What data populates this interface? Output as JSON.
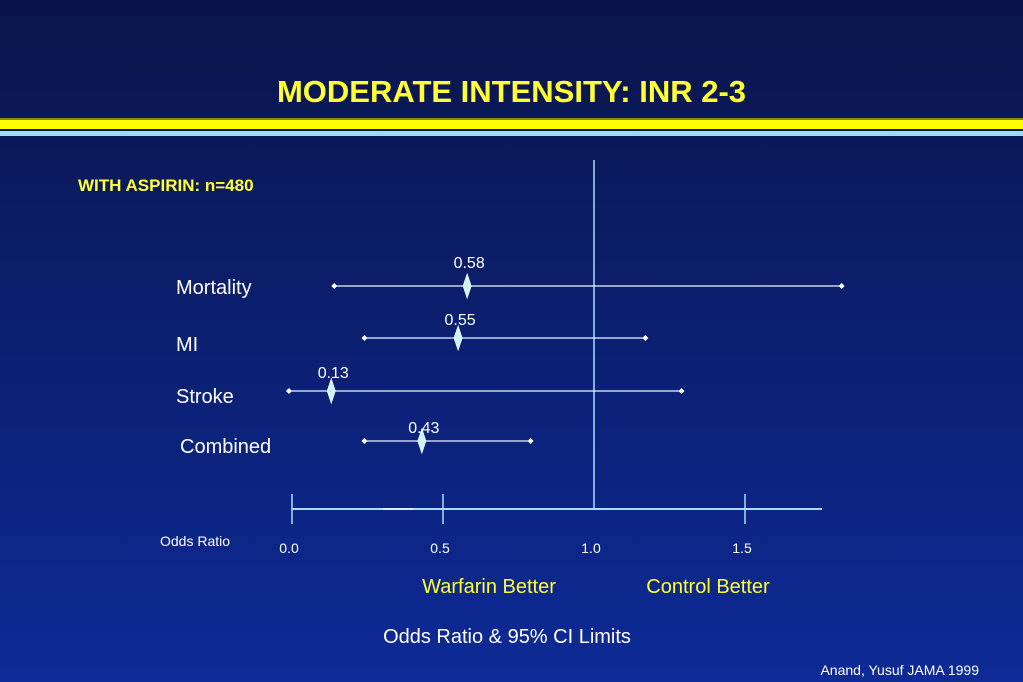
{
  "slide": {
    "title": "MODERATE INTENSITY: INR 2-3",
    "subtitle": "WITH ASPIRIN: n=480",
    "citation": "Anand, Yusuf JAMA  1999",
    "colors": {
      "title": "#ffff33",
      "band_yellow": "#ffff00",
      "band_cyan": "#99ddee",
      "line": "#aaddff"
    }
  },
  "chart_data": {
    "type": "forest",
    "xlabel": "Odds Ratio & 95% CI Limits",
    "axis_name": "Odds Ratio",
    "xlim": [
      0.0,
      1.75
    ],
    "ticks": [
      0.0,
      0.5,
      1.0,
      1.5
    ],
    "tick_labels": [
      "0.0",
      "0.5",
      "1.0",
      "1.5"
    ],
    "reference_line": 1.0,
    "left_direction_label": "Warfarin Better",
    "right_direction_label": "Control Better",
    "rows": [
      {
        "label": "Mortality",
        "estimate": 0.58,
        "estimate_label": "0.58",
        "ci_low": 0.14,
        "ci_high": 1.82
      },
      {
        "label": "MI",
        "estimate": 0.55,
        "estimate_label": "0.55",
        "ci_low": 0.24,
        "ci_high": 1.17
      },
      {
        "label": "Stroke",
        "estimate": 0.13,
        "estimate_label": "0.13",
        "ci_low": -0.01,
        "ci_high": 1.29
      },
      {
        "label": "Combined",
        "estimate": 0.43,
        "estimate_label": "0.43",
        "ci_low": 0.24,
        "ci_high": 0.79
      }
    ]
  }
}
